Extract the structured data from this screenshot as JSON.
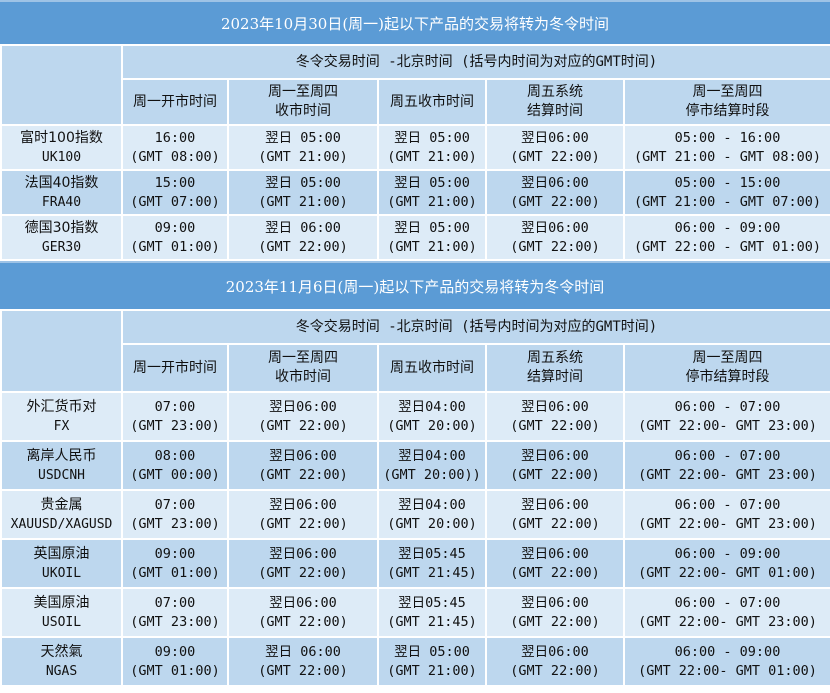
{
  "colors": {
    "title_bg": "#5b9bd5",
    "header_bg": "#bdd7ee",
    "row_light": "#ddebf7",
    "row_dark": "#bdd7ee"
  },
  "sections": [
    {
      "title": "2023年10月30日(周一)起以下产品的交易将转为冬令时间",
      "group_header": "冬令交易时间 -北京时间 (括号内时间为对应的GMT时间)",
      "columns": [
        [
          "周一开市时间"
        ],
        [
          "周一至周四",
          "收市时间"
        ],
        [
          "周五收市时间"
        ],
        [
          "周五系统",
          "结算时间"
        ],
        [
          "周一至周四",
          "停市结算时段"
        ]
      ],
      "rows": [
        {
          "name": "富时100指数",
          "code": "UK100",
          "cells": [
            [
              "16:00",
              "(GMT 08:00)"
            ],
            [
              "翌日 05:00",
              "(GMT 21:00)"
            ],
            [
              "翌日 05:00",
              "(GMT 21:00)"
            ],
            [
              "翌日06:00",
              "(GMT 22:00)"
            ],
            [
              "05:00 - 16:00",
              "(GMT 21:00 - GMT 08:00)"
            ]
          ]
        },
        {
          "name": "法国40指数",
          "code": "FRA40",
          "cells": [
            [
              "15:00",
              "(GMT 07:00)"
            ],
            [
              "翌日 05:00",
              "(GMT 21:00)"
            ],
            [
              "翌日 05:00",
              "(GMT 21:00)"
            ],
            [
              "翌日06:00",
              "(GMT 22:00)"
            ],
            [
              "05:00 - 15:00",
              "(GMT 21:00 - GMT 07:00)"
            ]
          ]
        },
        {
          "name": "德国30指数",
          "code": "GER30",
          "cells": [
            [
              "09:00",
              "(GMT 01:00)"
            ],
            [
              "翌日 06:00",
              "(GMT 22:00)"
            ],
            [
              "翌日 05:00",
              "(GMT 21:00)"
            ],
            [
              "翌日06:00",
              "(GMT 22:00)"
            ],
            [
              "06:00 - 09:00",
              "(GMT 22:00 - GMT 01:00)"
            ]
          ]
        }
      ]
    },
    {
      "title": "2023年11月6日(周一)起以下产品的交易将转为冬令时间",
      "group_header": "冬令交易时间 -北京时间 (括号内时间为对应的GMT时间)",
      "columns": [
        [
          "周一开市时间"
        ],
        [
          "周一至周四",
          "收市时间"
        ],
        [
          "周五收市时间"
        ],
        [
          "周五系统",
          "结算时间"
        ],
        [
          "周一至周四",
          "停市结算时段"
        ]
      ],
      "rows": [
        {
          "name": "外汇货币对",
          "code": "FX",
          "cells": [
            [
              "07:00",
              "(GMT 23:00)"
            ],
            [
              "翌日06:00",
              "(GMT 22:00)"
            ],
            [
              "翌日04:00",
              "(GMT 20:00)"
            ],
            [
              "翌日06:00",
              "(GMT 22:00)"
            ],
            [
              "06:00 - 07:00",
              "(GMT 22:00- GMT 23:00)"
            ]
          ]
        },
        {
          "name": "离岸人民币",
          "code": "USDCNH",
          "cells": [
            [
              "08:00",
              "(GMT 00:00)"
            ],
            [
              "翌日06:00",
              "(GMT 22:00)"
            ],
            [
              "翌日04:00",
              "(GMT 20:00))"
            ],
            [
              "翌日06:00",
              "(GMT 22:00)"
            ],
            [
              "06:00 - 07:00",
              "(GMT 22:00- GMT 23:00)"
            ]
          ]
        },
        {
          "name": "贵金属",
          "code": "XAUUSD/XAGUSD",
          "cells": [
            [
              "07:00",
              "(GMT 23:00)"
            ],
            [
              "翌日06:00",
              "(GMT 22:00)"
            ],
            [
              "翌日04:00",
              "(GMT 20:00)"
            ],
            [
              "翌日06:00",
              "(GMT 22:00)"
            ],
            [
              "06:00 - 07:00",
              "(GMT 22:00- GMT 23:00)"
            ]
          ]
        },
        {
          "name": "英国原油",
          "code": "UKOIL",
          "cells": [
            [
              "09:00",
              "(GMT 01:00)"
            ],
            [
              "翌日06:00",
              "(GMT 22:00)"
            ],
            [
              "翌日05:45",
              "(GMT 21:45)"
            ],
            [
              "翌日06:00",
              "(GMT 22:00)"
            ],
            [
              "06:00 - 09:00",
              "(GMT 22:00- GMT 01:00)"
            ]
          ]
        },
        {
          "name": "美国原油",
          "code": "USOIL",
          "cells": [
            [
              "07:00",
              "(GMT 23:00)"
            ],
            [
              "翌日06:00",
              "(GMT 22:00)"
            ],
            [
              "翌日05:45",
              "(GMT 21:45)"
            ],
            [
              "翌日06:00",
              "(GMT 22:00)"
            ],
            [
              "06:00 - 07:00",
              "(GMT 22:00- GMT 23:00)"
            ]
          ]
        },
        {
          "name": "天然氣",
          "code": "NGAS",
          "cells": [
            [
              "09:00",
              "(GMT 01:00)"
            ],
            [
              "翌日 06:00",
              "(GMT 22:00)"
            ],
            [
              "翌日 05:00",
              "(GMT 21:00)"
            ],
            [
              "翌日06:00",
              "(GMT 22:00)"
            ],
            [
              "06:00 - 09:00",
              "(GMT 22:00- GMT 01:00)"
            ]
          ]
        }
      ]
    }
  ]
}
